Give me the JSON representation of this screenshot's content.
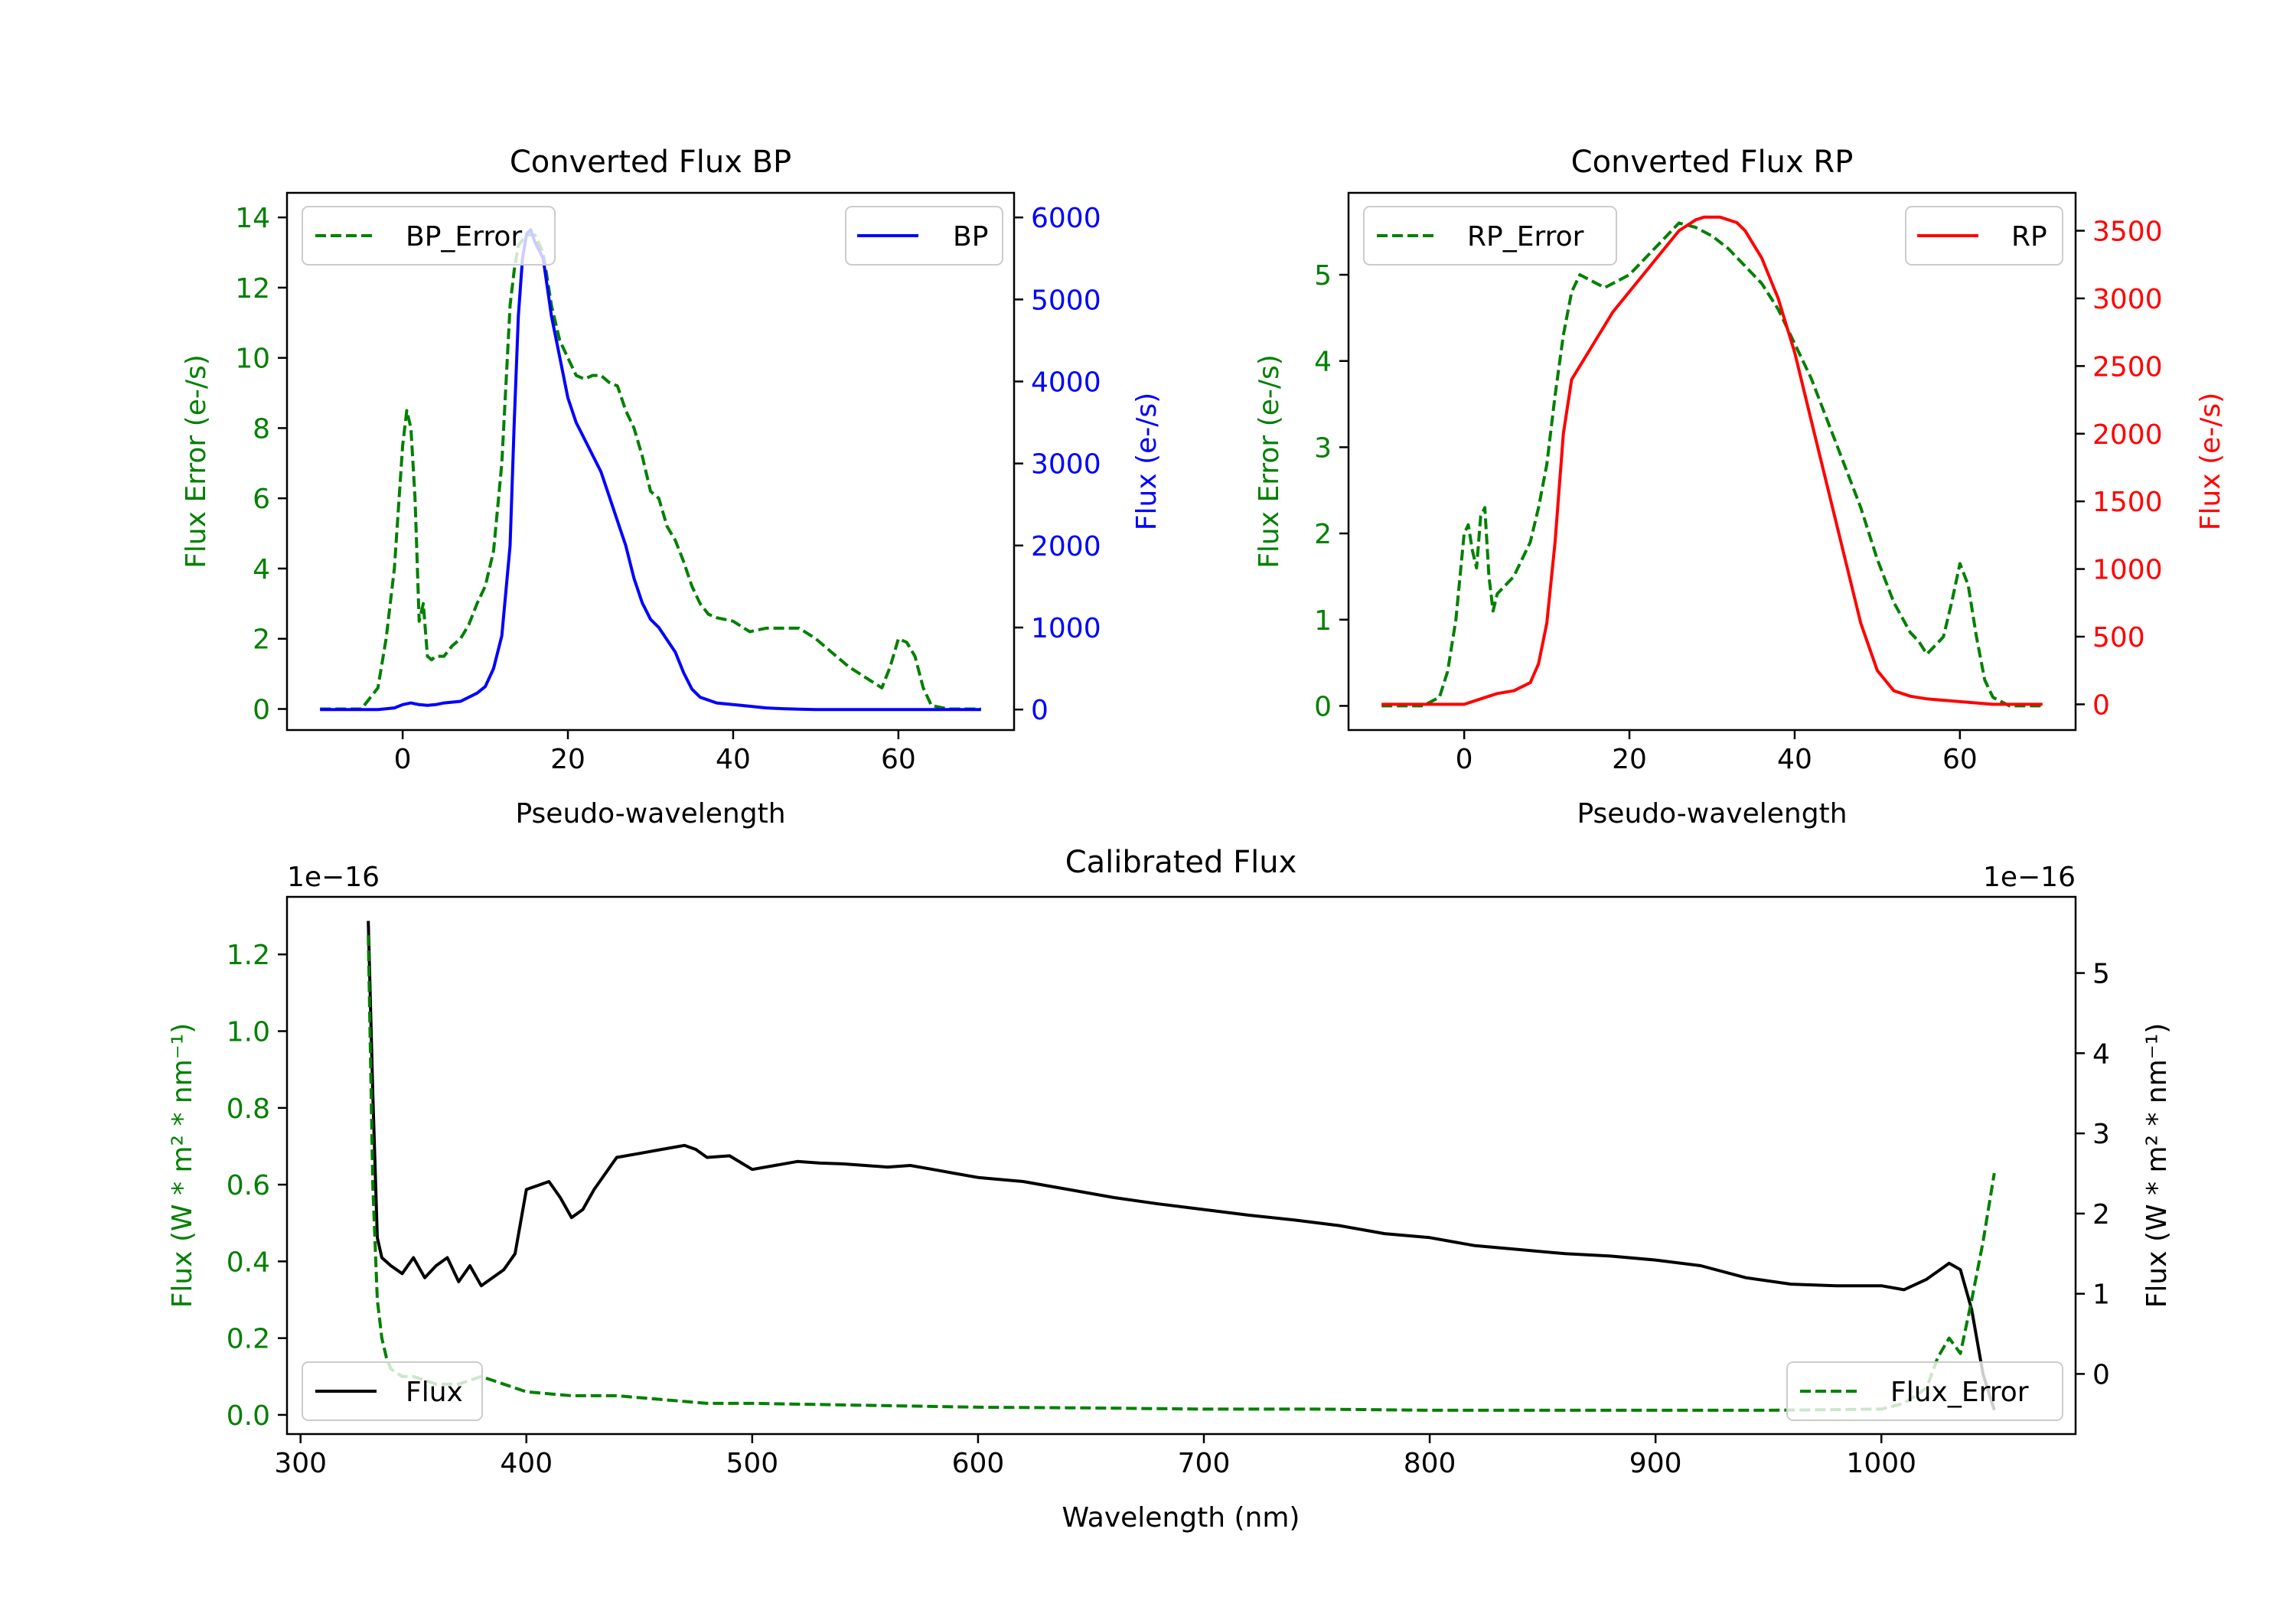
{
  "chart_data": [
    {
      "id": "bp",
      "type": "line",
      "title": "Converted Flux BP",
      "xlabel": "Pseudo-wavelength",
      "ylabel_left": "Flux Error (e-/s)",
      "ylabel_right": "Flux (e-/s)",
      "xlim": [
        -14,
        74
      ],
      "ylim_left": [
        -0.6,
        14.7
      ],
      "ylim_right": [
        -250,
        6300
      ],
      "xticks": [
        0,
        20,
        40,
        60
      ],
      "yticks_left": [
        0,
        2,
        4,
        6,
        8,
        10,
        12,
        14
      ],
      "yticks_right": [
        0,
        1000,
        2000,
        3000,
        4000,
        5000,
        6000
      ],
      "left_color": "#008000",
      "right_color": "#0000ff",
      "legend_left": "BP_Error",
      "legend_right": "BP",
      "series": [
        {
          "name": "BP_Error",
          "axis": "left",
          "style": "dashed",
          "color": "#008000",
          "x": [
            -10,
            -5,
            -3,
            -2,
            -1,
            0,
            0.5,
            1,
            1.5,
            2,
            2.5,
            3,
            3.5,
            4,
            5,
            6,
            7,
            8,
            9,
            10,
            11,
            12,
            13,
            13.5,
            14,
            15,
            16,
            17,
            18,
            19,
            20,
            21,
            22,
            23,
            24,
            25,
            26,
            27,
            28,
            29,
            30,
            31,
            32,
            33,
            34,
            35,
            36,
            37,
            38,
            40,
            42,
            44,
            46,
            48,
            50,
            52,
            54,
            56,
            58,
            59,
            60,
            61,
            62,
            63,
            64,
            66,
            70
          ],
          "y": [
            0,
            0,
            0.6,
            2,
            4,
            7.5,
            8.5,
            8,
            6,
            2.5,
            3,
            1.5,
            1.4,
            1.5,
            1.5,
            1.8,
            2,
            2.4,
            3,
            3.5,
            4.5,
            7,
            11.5,
            12.5,
            13.2,
            13.5,
            13.5,
            13,
            11.5,
            10.5,
            10,
            9.5,
            9.4,
            9.5,
            9.5,
            9.3,
            9.2,
            8.5,
            8,
            7.2,
            6.2,
            6,
            5.2,
            4.8,
            4.2,
            3.5,
            3,
            2.7,
            2.6,
            2.5,
            2.2,
            2.3,
            2.3,
            2.3,
            2.0,
            1.6,
            1.2,
            0.9,
            0.6,
            1.2,
            2.0,
            1.9,
            1.5,
            0.6,
            0.1,
            0,
            0
          ]
        },
        {
          "name": "BP",
          "axis": "right",
          "style": "solid",
          "color": "#0000ff",
          "x": [
            -10,
            -6,
            -3,
            -1,
            0,
            1,
            2,
            3,
            4,
            5,
            7,
            9,
            10,
            11,
            12,
            13,
            13.5,
            14,
            14.5,
            15,
            15.5,
            16,
            17,
            18,
            19,
            20,
            21,
            22,
            23,
            24,
            25,
            26,
            27,
            28,
            29,
            30,
            31,
            32,
            33,
            34,
            35,
            36,
            38,
            40,
            42,
            44,
            46,
            48,
            50,
            52,
            55,
            58,
            60,
            62,
            65,
            70
          ],
          "y": [
            0,
            0,
            0,
            20,
            60,
            80,
            60,
            50,
            60,
            80,
            100,
            200,
            280,
            500,
            900,
            2000,
            3500,
            4800,
            5500,
            5800,
            5850,
            5700,
            5500,
            4800,
            4300,
            3800,
            3500,
            3300,
            3100,
            2900,
            2600,
            2300,
            2000,
            1600,
            1300,
            1100,
            1000,
            850,
            700,
            450,
            250,
            150,
            80,
            60,
            40,
            20,
            10,
            5,
            0,
            0,
            0,
            0,
            0,
            0,
            0,
            0
          ]
        }
      ]
    },
    {
      "id": "rp",
      "type": "line",
      "title": "Converted Flux RP",
      "xlabel": "Pseudo-wavelength",
      "ylabel_left": "Flux Error (e-/s)",
      "ylabel_right": "Flux (e-/s)",
      "xlim": [
        -14,
        74
      ],
      "ylim_left": [
        -0.28,
        5.95
      ],
      "ylim_right": [
        -190,
        3780
      ],
      "xticks": [
        0,
        20,
        40,
        60
      ],
      "yticks_left": [
        0,
        1,
        2,
        3,
        4,
        5
      ],
      "yticks_right": [
        0,
        500,
        1000,
        1500,
        2000,
        2500,
        3000,
        3500
      ],
      "left_color": "#008000",
      "right_color": "#ff0000",
      "legend_left": "RP_Error",
      "legend_right": "RP",
      "series": [
        {
          "name": "RP_Error",
          "axis": "left",
          "style": "dashed",
          "color": "#008000",
          "x": [
            -10,
            -5,
            -3,
            -2,
            -1,
            0,
            0.5,
            1,
            1.5,
            2,
            2.5,
            3,
            3.5,
            4,
            5,
            6,
            7,
            8,
            9,
            10,
            11,
            12,
            13,
            14,
            15,
            16,
            17,
            18,
            19,
            20,
            22,
            24,
            26,
            28,
            30,
            32,
            34,
            36,
            38,
            40,
            42,
            44,
            46,
            48,
            50,
            52,
            54,
            55,
            56,
            57,
            58,
            59,
            60,
            61,
            62,
            63,
            64,
            66,
            70
          ],
          "y": [
            0,
            0,
            0.1,
            0.4,
            1.0,
            2.0,
            2.1,
            1.8,
            1.6,
            2.2,
            2.3,
            1.5,
            1.1,
            1.3,
            1.4,
            1.5,
            1.7,
            1.9,
            2.3,
            2.8,
            3.6,
            4.3,
            4.8,
            5.0,
            4.95,
            4.9,
            4.85,
            4.9,
            4.95,
            5.0,
            5.2,
            5.4,
            5.6,
            5.55,
            5.45,
            5.3,
            5.1,
            4.9,
            4.6,
            4.2,
            3.8,
            3.3,
            2.8,
            2.3,
            1.7,
            1.2,
            0.85,
            0.75,
            0.6,
            0.7,
            0.8,
            1.2,
            1.65,
            1.4,
            0.8,
            0.3,
            0.1,
            0,
            0
          ]
        },
        {
          "name": "RP",
          "axis": "right",
          "style": "solid",
          "color": "#ff0000",
          "x": [
            -10,
            -5,
            0,
            2,
            4,
            6,
            8,
            9,
            10,
            11,
            12,
            13,
            14,
            15,
            16,
            18,
            20,
            22,
            24,
            26,
            28,
            29,
            30,
            31,
            32,
            33,
            34,
            36,
            38,
            40,
            42,
            44,
            46,
            48,
            50,
            52,
            54,
            56,
            58,
            60,
            62,
            64,
            66,
            70
          ],
          "y": [
            0,
            0,
            0,
            40,
            80,
            100,
            160,
            300,
            600,
            1200,
            2000,
            2400,
            2500,
            2600,
            2700,
            2900,
            3050,
            3200,
            3350,
            3500,
            3580,
            3600,
            3600,
            3600,
            3580,
            3560,
            3500,
            3300,
            3000,
            2600,
            2100,
            1600,
            1100,
            600,
            250,
            100,
            60,
            40,
            30,
            20,
            10,
            0,
            0,
            0
          ]
        }
      ]
    },
    {
      "id": "calibrated",
      "type": "line",
      "title": "Calibrated Flux",
      "xlabel": "Wavelength (nm)",
      "ylabel_left": "Flux (W * m² * nm⁻¹)",
      "ylabel_right": "Flux (W * m² * nm⁻¹)",
      "offset_left": "1e−16",
      "offset_right": "1e−16",
      "xlim": [
        294,
        1086
      ],
      "ylim_left": [
        -0.05,
        1.35
      ],
      "ylim_right": [
        -0.75,
        5.95
      ],
      "xticks": [
        300,
        400,
        500,
        600,
        700,
        800,
        900,
        1000
      ],
      "yticks_left": [
        "0.0",
        "0.2",
        "0.4",
        "0.6",
        "0.8",
        "1.0",
        "1.2"
      ],
      "yticks_right": [
        0,
        1,
        2,
        3,
        4,
        5
      ],
      "left_color": "#008000",
      "right_color": "#000000",
      "legend_left": "Flux",
      "legend_right": "Flux_Error",
      "series": [
        {
          "name": "Flux",
          "axis": "right",
          "style": "solid",
          "color": "#000000",
          "x": [
            330,
            332,
            334,
            336,
            340,
            345,
            350,
            355,
            360,
            365,
            370,
            375,
            380,
            385,
            390,
            395,
            400,
            405,
            410,
            415,
            420,
            425,
            430,
            440,
            450,
            460,
            470,
            475,
            480,
            490,
            500,
            510,
            520,
            530,
            540,
            550,
            560,
            570,
            580,
            590,
            600,
            620,
            640,
            660,
            680,
            700,
            720,
            740,
            760,
            780,
            800,
            820,
            840,
            860,
            880,
            900,
            920,
            940,
            960,
            980,
            1000,
            1010,
            1020,
            1030,
            1035,
            1040,
            1045,
            1050
          ],
          "y": [
            5.65,
            3.5,
            1.7,
            1.45,
            1.35,
            1.25,
            1.45,
            1.2,
            1.35,
            1.45,
            1.15,
            1.35,
            1.1,
            1.2,
            1.3,
            1.5,
            2.3,
            2.35,
            2.4,
            2.2,
            1.95,
            2.05,
            2.3,
            2.7,
            2.75,
            2.8,
            2.85,
            2.8,
            2.7,
            2.72,
            2.55,
            2.6,
            2.65,
            2.63,
            2.62,
            2.6,
            2.58,
            2.6,
            2.55,
            2.5,
            2.45,
            2.4,
            2.3,
            2.2,
            2.12,
            2.05,
            1.98,
            1.92,
            1.85,
            1.75,
            1.7,
            1.6,
            1.55,
            1.5,
            1.47,
            1.42,
            1.35,
            1.2,
            1.12,
            1.1,
            1.1,
            1.05,
            1.18,
            1.38,
            1.3,
            0.8,
            0.0,
            -0.45
          ]
        },
        {
          "name": "Flux_Error",
          "axis": "left",
          "style": "dashed",
          "color": "#008000",
          "x": [
            330,
            332,
            334,
            336,
            338,
            340,
            345,
            350,
            360,
            370,
            380,
            390,
            400,
            420,
            440,
            460,
            480,
            500,
            550,
            600,
            650,
            700,
            750,
            800,
            850,
            900,
            950,
            1000,
            1010,
            1020,
            1025,
            1030,
            1035,
            1040,
            1045,
            1050
          ],
          "y": [
            1.25,
            0.6,
            0.3,
            0.2,
            0.15,
            0.12,
            0.1,
            0.1,
            0.08,
            0.08,
            0.1,
            0.08,
            0.06,
            0.05,
            0.05,
            0.04,
            0.03,
            0.03,
            0.025,
            0.02,
            0.018,
            0.015,
            0.015,
            0.012,
            0.012,
            0.012,
            0.012,
            0.015,
            0.03,
            0.07,
            0.15,
            0.2,
            0.16,
            0.3,
            0.45,
            0.63
          ]
        }
      ]
    }
  ]
}
